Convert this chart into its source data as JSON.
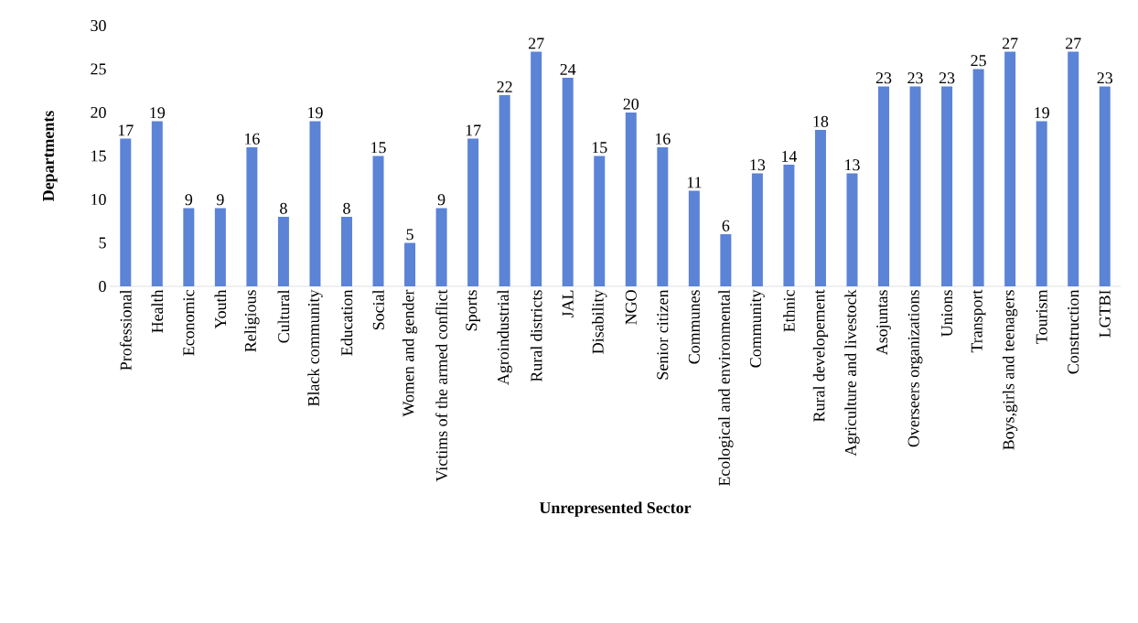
{
  "chart_data": {
    "type": "bar",
    "xlabel": "Unrepresented Sector",
    "ylabel": "Departments",
    "categories": [
      "Professional",
      "Health",
      "Economic",
      "Youth",
      "Religious",
      "Cultural",
      "Black community",
      "Education",
      "Social",
      "Women and gender",
      "Victims of the armed conflict",
      "Sports",
      "Agroindustrial",
      "Rural districts",
      "JAL",
      "Disability",
      "NGO",
      "Senior citizen",
      "Communes",
      "Ecological and environmental",
      "Community",
      "Ethnic",
      "Rural developement",
      "Agriculture and livestock",
      "Asojuntas",
      "Overseers organizations",
      "Unions",
      "Transport",
      "Boys,girls and teenagers",
      "Tourism",
      "Construction",
      "LGTBI"
    ],
    "values": [
      17,
      19,
      9,
      9,
      16,
      8,
      19,
      8,
      15,
      5,
      9,
      17,
      22,
      27,
      24,
      15,
      20,
      16,
      11,
      6,
      13,
      14,
      18,
      13,
      23,
      23,
      23,
      25,
      27,
      19,
      27,
      23
    ],
    "color": "#5b83d6",
    "ylim": [
      0,
      30
    ],
    "yticks": [
      0,
      5,
      10,
      15,
      20,
      25,
      30
    ],
    "data_labels": true,
    "grid": false
  }
}
